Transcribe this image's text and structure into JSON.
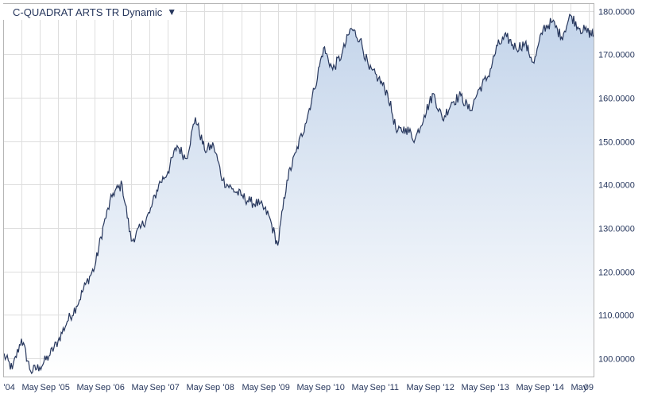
{
  "colors": {
    "line": "#27375d",
    "fill_top": "#c3d4ea",
    "fill_bottom": "#ffffff",
    "grid": "#dedede",
    "frame": "#b5b5b5",
    "text": "#27375d"
  },
  "title_dropdown": {
    "label": "C-QUADRAT ARTS TR Dynamic",
    "arrow": "▼",
    "arrow_icon": "dropdown-triangle-icon"
  },
  "chart_data": {
    "type": "area",
    "title": "C-QUADRAT ARTS TR Dynamic",
    "grid": true,
    "y_axis_position": "right",
    "ylim": [
      95.8,
      181.8
    ],
    "y_ticks": [
      100,
      110,
      120,
      130,
      140,
      150,
      160,
      170,
      180
    ],
    "y_tick_labels": [
      "100.0000",
      "110.0000",
      "120.0000",
      "130.0000",
      "140.0000",
      "150.0000",
      "160.0000",
      "170.0000",
      "180.0000"
    ],
    "xlim": [
      "2004-01",
      "2014-10"
    ],
    "x_ticks": [
      "2004-01",
      "2004-05",
      "2004-09",
      "2005-01",
      "2005-05",
      "2005-09",
      "2006-01",
      "2006-05",
      "2006-09",
      "2007-01",
      "2007-05",
      "2007-09",
      "2008-01",
      "2008-05",
      "2008-09",
      "2009-01",
      "2009-05",
      "2009-09",
      "2010-01",
      "2010-05",
      "2010-09",
      "2011-01",
      "2011-05",
      "2011-09",
      "2012-01",
      "2012-05",
      "2012-09",
      "2013-01",
      "2013-05",
      "2013-09",
      "2014-01",
      "2014-05",
      "2014-09"
    ],
    "x_tick_labels": [
      "'04",
      "May",
      "Sep",
      "'05",
      "May",
      "Sep",
      "'06",
      "May",
      "Sep",
      "'07",
      "May",
      "Sep",
      "'08",
      "May",
      "Sep",
      "'09",
      "May",
      "Sep",
      "'10",
      "May",
      "Sep",
      "'11",
      "May",
      "Sep",
      "'12",
      "May",
      "Sep",
      "'13",
      "May",
      "Sep",
      "'14",
      "May",
      "09"
    ],
    "x": [
      "2004-01",
      "2004-03",
      "2004-05",
      "2004-07",
      "2004-09",
      "2004-11",
      "2005-01",
      "2005-03",
      "2005-05",
      "2005-07",
      "2005-09",
      "2005-11",
      "2006-01",
      "2006-03",
      "2006-05",
      "2006-07",
      "2006-09",
      "2006-11",
      "2007-01",
      "2007-03",
      "2007-05",
      "2007-07",
      "2007-09",
      "2007-11",
      "2008-01",
      "2008-03",
      "2008-05",
      "2008-07",
      "2008-09",
      "2008-11",
      "2009-01",
      "2009-03",
      "2009-05",
      "2009-07",
      "2009-09",
      "2009-11",
      "2010-01",
      "2010-03",
      "2010-05",
      "2010-07",
      "2010-09",
      "2010-11",
      "2011-01",
      "2011-03",
      "2011-05",
      "2011-07",
      "2011-09",
      "2011-11",
      "2012-01",
      "2012-03",
      "2012-05",
      "2012-07",
      "2012-09",
      "2012-11",
      "2013-01",
      "2013-03",
      "2013-05",
      "2013-07",
      "2013-09",
      "2013-11",
      "2014-01",
      "2014-03",
      "2014-05",
      "2014-07",
      "2014-09",
      "2014-10"
    ],
    "values": [
      101.0,
      97.5,
      104.5,
      97.0,
      98.0,
      100.5,
      104.0,
      108.5,
      112.0,
      117.0,
      121.0,
      131.0,
      138.0,
      140.0,
      127.0,
      130.0,
      133.5,
      140.0,
      143.0,
      149.0,
      146.0,
      155.5,
      148.0,
      149.0,
      141.0,
      139.0,
      137.5,
      136.0,
      135.5,
      133.0,
      126.0,
      141.0,
      147.5,
      154.0,
      162.0,
      171.5,
      166.5,
      170.0,
      176.0,
      173.5,
      166.5,
      164.5,
      161.0,
      152.0,
      153.0,
      150.5,
      156.0,
      161.0,
      155.0,
      159.0,
      160.5,
      157.0,
      162.0,
      165.0,
      172.0,
      174.0,
      171.5,
      172.5,
      168.0,
      176.0,
      177.5,
      174.0,
      179.0,
      176.0,
      175.0,
      174.5
    ]
  }
}
